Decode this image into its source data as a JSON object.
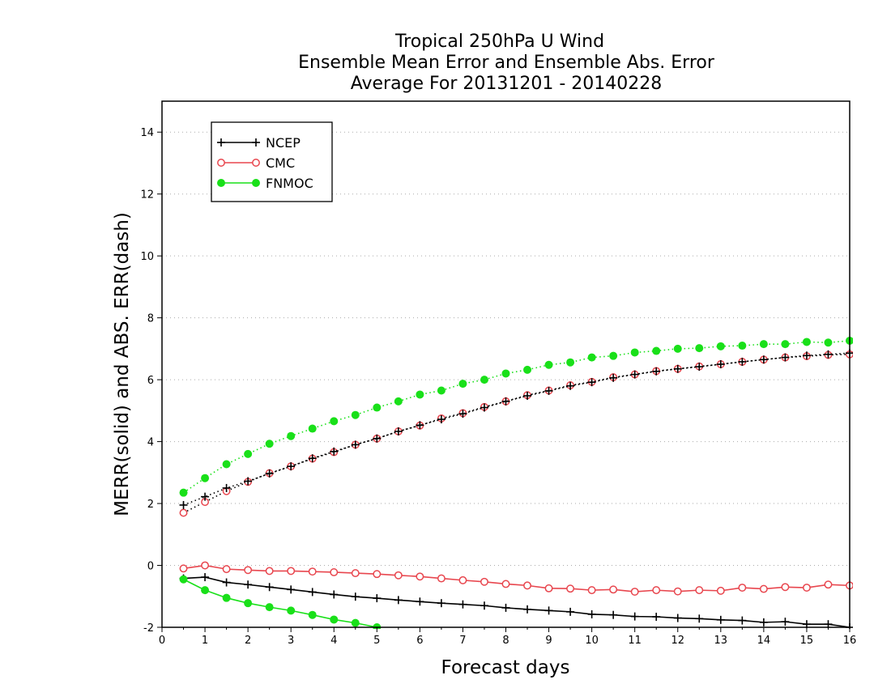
{
  "chart_data": {
    "type": "line",
    "title": [
      "Tropical 250hPa U Wind",
      "Ensemble Mean Error and Ensemble Abs. Error",
      "Average For 20131201 - 20140228"
    ],
    "xlabel": "Forecast days",
    "ylabel": "MERR(solid) and ABS. ERR(dash)",
    "xlim": [
      0,
      16
    ],
    "ylim": [
      -2,
      15
    ],
    "xticks": [
      0,
      1,
      2,
      3,
      4,
      5,
      6,
      7,
      8,
      9,
      10,
      11,
      12,
      13,
      14,
      15,
      16
    ],
    "yticks": [
      -2,
      0,
      2,
      4,
      6,
      8,
      10,
      12,
      14
    ],
    "grid": "horizontal dotted",
    "legend_position": "top-left",
    "x": [
      0.5,
      1,
      1.5,
      2,
      2.5,
      3,
      3.5,
      4,
      4.5,
      5,
      5.5,
      6,
      6.5,
      7,
      7.5,
      8,
      8.5,
      9,
      9.5,
      10,
      10.5,
      11,
      11.5,
      12,
      12.5,
      13,
      13.5,
      14,
      14.5,
      15,
      15.5,
      16
    ],
    "series": [
      {
        "name": "NCEP",
        "color": "#000000",
        "marker": "plus",
        "merr": [
          -0.42,
          -0.38,
          -0.55,
          -0.62,
          -0.7,
          -0.78,
          -0.86,
          -0.94,
          -1.01,
          -1.06,
          -1.12,
          -1.17,
          -1.22,
          -1.26,
          -1.3,
          -1.37,
          -1.42,
          -1.46,
          -1.5,
          -1.58,
          -1.6,
          -1.65,
          -1.66,
          -1.7,
          -1.72,
          -1.76,
          -1.78,
          -1.84,
          -1.82,
          -1.9,
          -1.9,
          -2.0
        ],
        "abs_err": [
          1.95,
          2.22,
          2.5,
          2.72,
          2.97,
          3.2,
          3.46,
          3.68,
          3.9,
          4.1,
          4.33,
          4.53,
          4.72,
          4.9,
          5.1,
          5.3,
          5.48,
          5.64,
          5.8,
          5.92,
          6.06,
          6.17,
          6.27,
          6.35,
          6.42,
          6.5,
          6.58,
          6.65,
          6.72,
          6.78,
          6.82,
          6.86
        ]
      },
      {
        "name": "CMC",
        "color": "#e8464e",
        "marker": "open-circle",
        "merr": [
          -0.1,
          0.0,
          -0.12,
          -0.15,
          -0.18,
          -0.18,
          -0.2,
          -0.22,
          -0.25,
          -0.28,
          -0.32,
          -0.36,
          -0.42,
          -0.48,
          -0.53,
          -0.6,
          -0.65,
          -0.74,
          -0.75,
          -0.8,
          -0.78,
          -0.85,
          -0.8,
          -0.84,
          -0.8,
          -0.82,
          -0.72,
          -0.76,
          -0.7,
          -0.72,
          -0.62,
          -0.65
        ],
        "abs_err": [
          1.7,
          2.05,
          2.4,
          2.7,
          2.98,
          3.2,
          3.45,
          3.66,
          3.9,
          4.1,
          4.33,
          4.52,
          4.75,
          4.92,
          5.12,
          5.3,
          5.5,
          5.65,
          5.82,
          5.93,
          6.08,
          6.17,
          6.28,
          6.35,
          6.43,
          6.5,
          6.58,
          6.65,
          6.72,
          6.76,
          6.8,
          6.82
        ]
      },
      {
        "name": "FNMOC",
        "color": "#19e019",
        "marker": "filled-circle",
        "merr": [
          -0.45,
          -0.8,
          -1.05,
          -1.22,
          -1.35,
          -1.46,
          -1.6,
          -1.75,
          -1.86,
          -2.0
        ],
        "abs_err": [
          2.35,
          2.82,
          3.27,
          3.6,
          3.93,
          4.18,
          4.42,
          4.66,
          4.86,
          5.1,
          5.3,
          5.52,
          5.65,
          5.87,
          6.0,
          6.2,
          6.32,
          6.48,
          6.56,
          6.72,
          6.77,
          6.88,
          6.93,
          7.0,
          7.02,
          7.08,
          7.1,
          7.15,
          7.15,
          7.22,
          7.2,
          7.26
        ]
      }
    ]
  }
}
